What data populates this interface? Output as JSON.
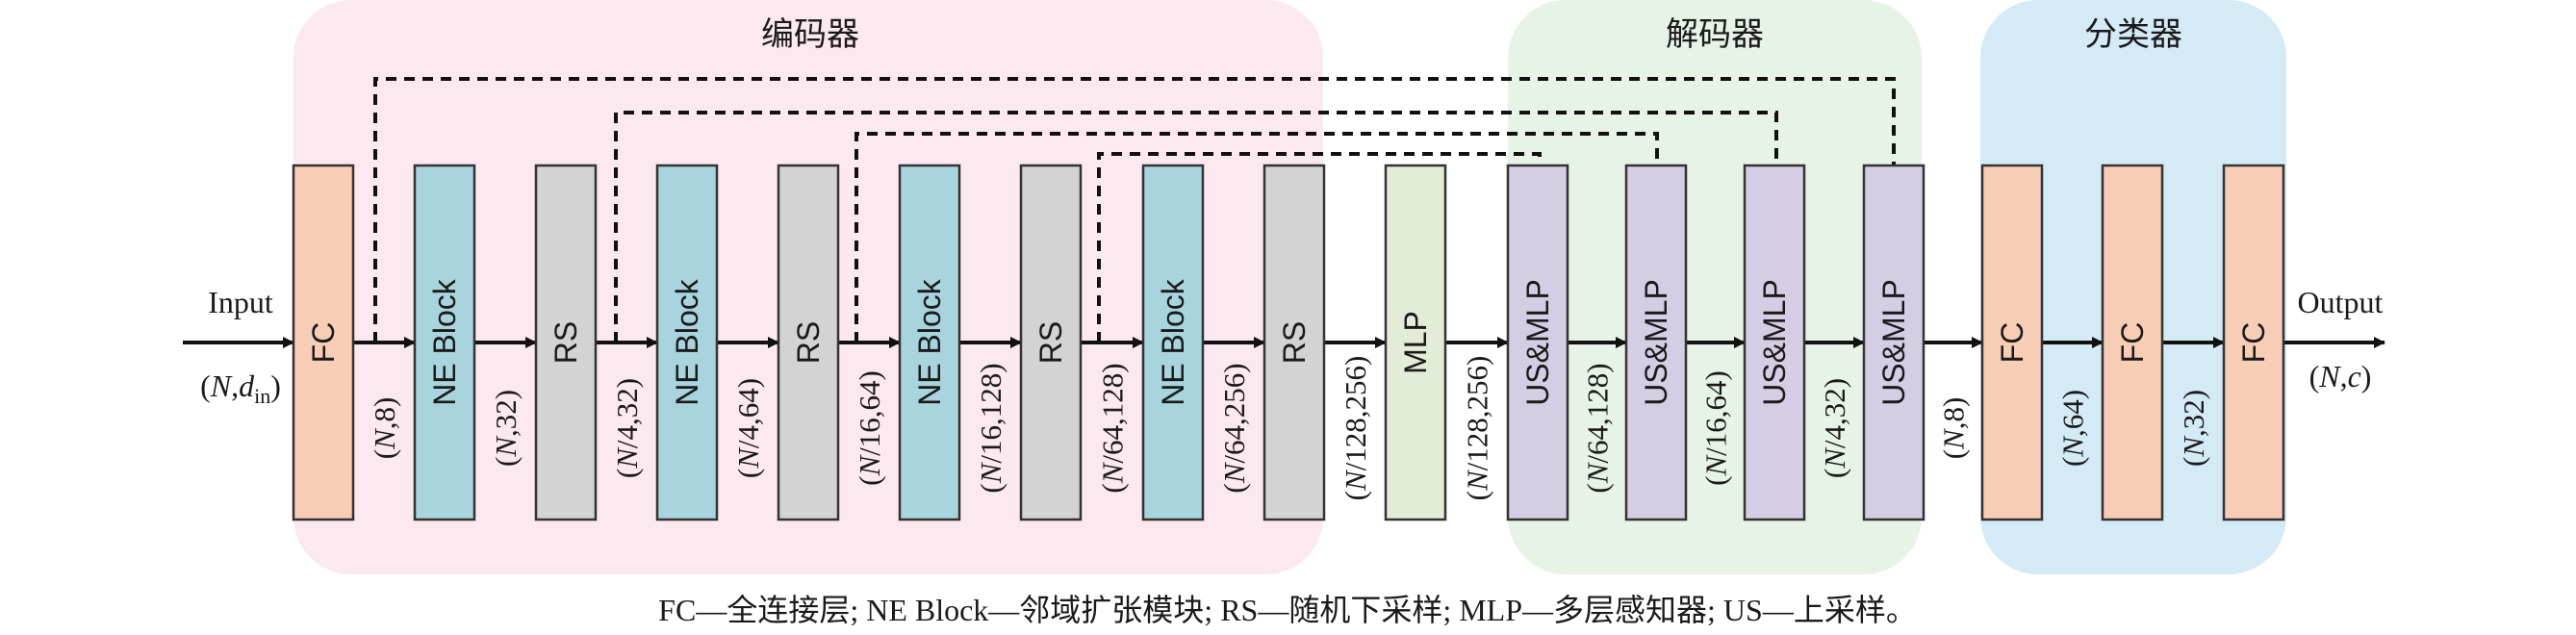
{
  "groups": {
    "encoder": "编码器",
    "decoder": "解码器",
    "classifier": "分类器"
  },
  "colors": {
    "encoder_bg": "#fce8ef",
    "decoder_bg": "#e7f3e6",
    "classifier_bg": "#d4eaf6",
    "fc": "#f8cdb5",
    "ne_block": "#a8d4de",
    "rs": "#d3d3d3",
    "mlp": "#e2ecd6",
    "us_mlp": "#d5cde4"
  },
  "io": {
    "input": "Input",
    "input_dim_pre": "(",
    "input_dim_n": "N",
    "input_dim_mid": ",",
    "input_dim_d": "d",
    "input_dim_sub": "in",
    "input_dim_post": ")",
    "output": "Output",
    "output_dim_pre": "(",
    "output_dim_n": "N",
    "output_dim_mid": ",",
    "output_dim_c": "c",
    "output_dim_post": ")"
  },
  "blocks": [
    {
      "label": "FC",
      "type": "fc"
    },
    {
      "label": "NE Block",
      "type": "ne_block"
    },
    {
      "label": "RS",
      "type": "rs"
    },
    {
      "label": "NE Block",
      "type": "ne_block"
    },
    {
      "label": "RS",
      "type": "rs"
    },
    {
      "label": "NE Block",
      "type": "ne_block"
    },
    {
      "label": "RS",
      "type": "rs"
    },
    {
      "label": "NE Block",
      "type": "ne_block"
    },
    {
      "label": "RS",
      "type": "rs"
    },
    {
      "label": "MLP",
      "type": "mlp"
    },
    {
      "label": "US&MLP",
      "type": "us_mlp"
    },
    {
      "label": "US&MLP",
      "type": "us_mlp"
    },
    {
      "label": "US&MLP",
      "type": "us_mlp"
    },
    {
      "label": "US&MLP",
      "type": "us_mlp"
    },
    {
      "label": "FC",
      "type": "fc"
    },
    {
      "label": "FC",
      "type": "fc"
    },
    {
      "label": "FC",
      "type": "fc"
    }
  ],
  "dims": [
    {
      "n": "N",
      "rest": ",8)"
    },
    {
      "n": "N",
      "rest": ",32)"
    },
    {
      "n": "N",
      "rest": "/4,32)"
    },
    {
      "n": "N",
      "rest": "/4,64)"
    },
    {
      "n": "N",
      "rest": "/16,64)"
    },
    {
      "n": "N",
      "rest": "/16,128)"
    },
    {
      "n": "N",
      "rest": "/64,128)"
    },
    {
      "n": "N",
      "rest": "/64,256)"
    },
    {
      "n": "N",
      "rest": "/128,256)"
    },
    {
      "n": "N",
      "rest": "/128,256)"
    },
    {
      "n": "N",
      "rest": "/64,128)"
    },
    {
      "n": "N",
      "rest": "/16,64)"
    },
    {
      "n": "N",
      "rest": "/4,32)"
    },
    {
      "n": "N",
      "rest": ",8)"
    },
    {
      "n": "N",
      "rest": ",64)"
    },
    {
      "n": "N",
      "rest": ",32)"
    }
  ],
  "caption": "FC—全连接层; NE Block—邻域扩张模块; RS—随机下采样; MLP—多层感知器; US—上采样。"
}
